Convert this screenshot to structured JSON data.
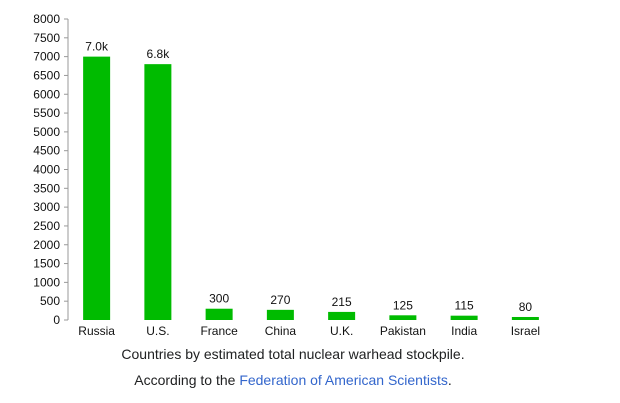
{
  "chart_data": {
    "type": "bar",
    "categories": [
      "Russia",
      "U.S.",
      "France",
      "China",
      "U.K.",
      "Pakistan",
      "India",
      "Israel"
    ],
    "values": [
      7000,
      6800,
      300,
      270,
      215,
      125,
      115,
      80
    ],
    "data_labels": [
      "7.0k",
      "6.8k",
      "300",
      "270",
      "215",
      "125",
      "115",
      "80"
    ],
    "yticks": [
      0,
      500,
      1000,
      1500,
      2000,
      2500,
      3000,
      3500,
      4000,
      4500,
      5000,
      5500,
      6000,
      6500,
      7000,
      7500,
      8000
    ],
    "ylim": [
      0,
      8000
    ],
    "bar_color": "#00bb00",
    "axis_color": "#999999",
    "grid": false
  },
  "caption": {
    "line1": "Countries by estimated total nuclear warhead stockpile.",
    "line2_prefix": "According to the ",
    "line2_link": "Federation of American Scientists",
    "line2_suffix": "."
  },
  "colors": {
    "link": "#3366cc",
    "caption_text": "#202122"
  }
}
